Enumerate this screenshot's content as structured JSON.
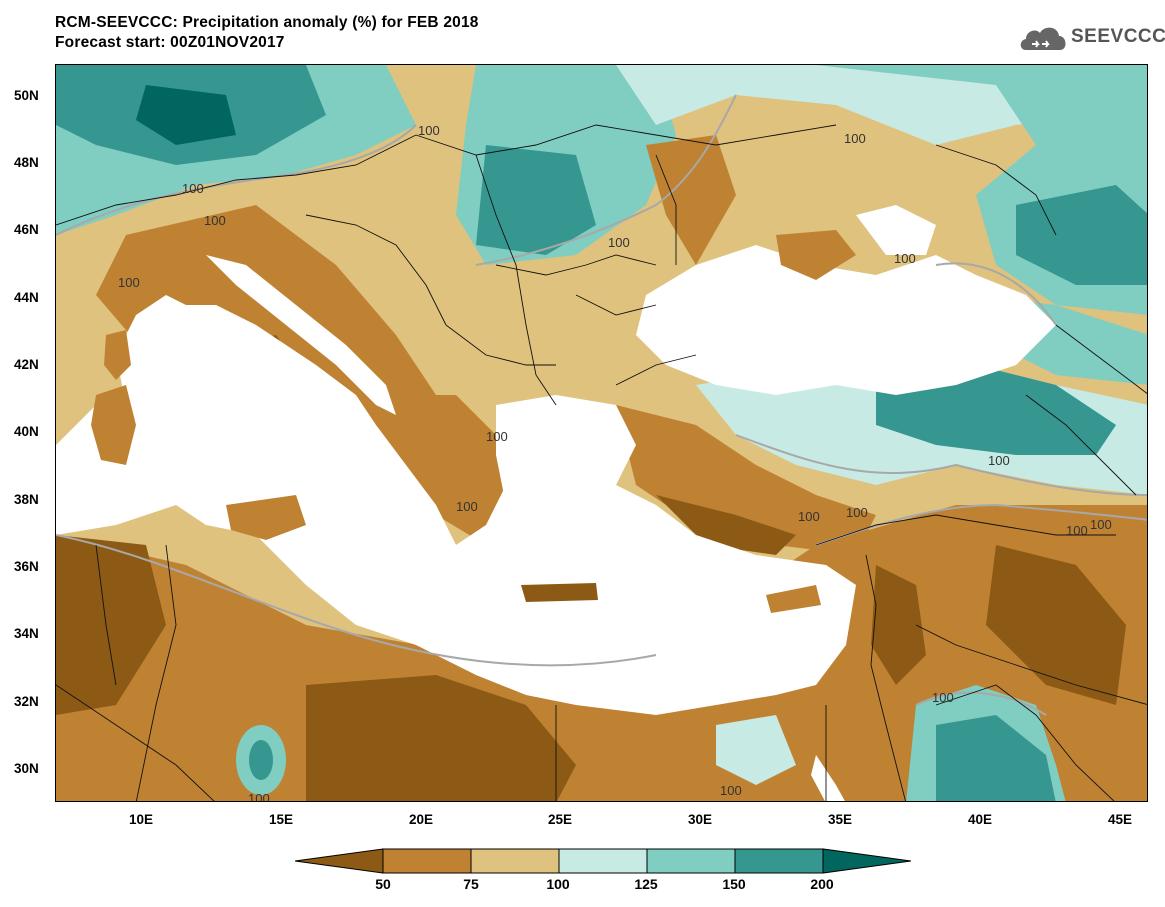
{
  "header": {
    "title_line1": "RCM-SEEVCCC: Precipitation anomaly (%) for FEB 2018",
    "title_line2": "Forecast start: 00Z01NOV2017",
    "logo_text": "SEEVCCC"
  },
  "map": {
    "lat_labels": [
      "50N",
      "48N",
      "46N",
      "44N",
      "42N",
      "40N",
      "38N",
      "36N",
      "34N",
      "32N",
      "30N"
    ],
    "lon_labels": [
      "10E",
      "15E",
      "20E",
      "25E",
      "30E",
      "35E",
      "40E",
      "45E"
    ],
    "contour_labels": [
      "100",
      "100",
      "100",
      "100",
      "100",
      "100",
      "100",
      "100",
      "100",
      "100",
      "100",
      "100",
      "100",
      "100",
      "100",
      "100",
      "100"
    ],
    "legend": {
      "labels": [
        "50",
        "75",
        "100",
        "125",
        "150",
        "200"
      ],
      "colors": [
        "#8c5a14",
        "#bf8233",
        "#dfc27d",
        "#c7eae5",
        "#80cdc1",
        "#35978f",
        "#01665e"
      ]
    },
    "colors": {
      "sea": "#ffffff",
      "very_dry": "#8c5a14",
      "dry": "#bf8233",
      "slightly_dry": "#dfc27d",
      "slightly_wet": "#c7eae5",
      "wet": "#80cdc1",
      "very_wet": "#35978f",
      "extreme_wet": "#01665e"
    }
  }
}
